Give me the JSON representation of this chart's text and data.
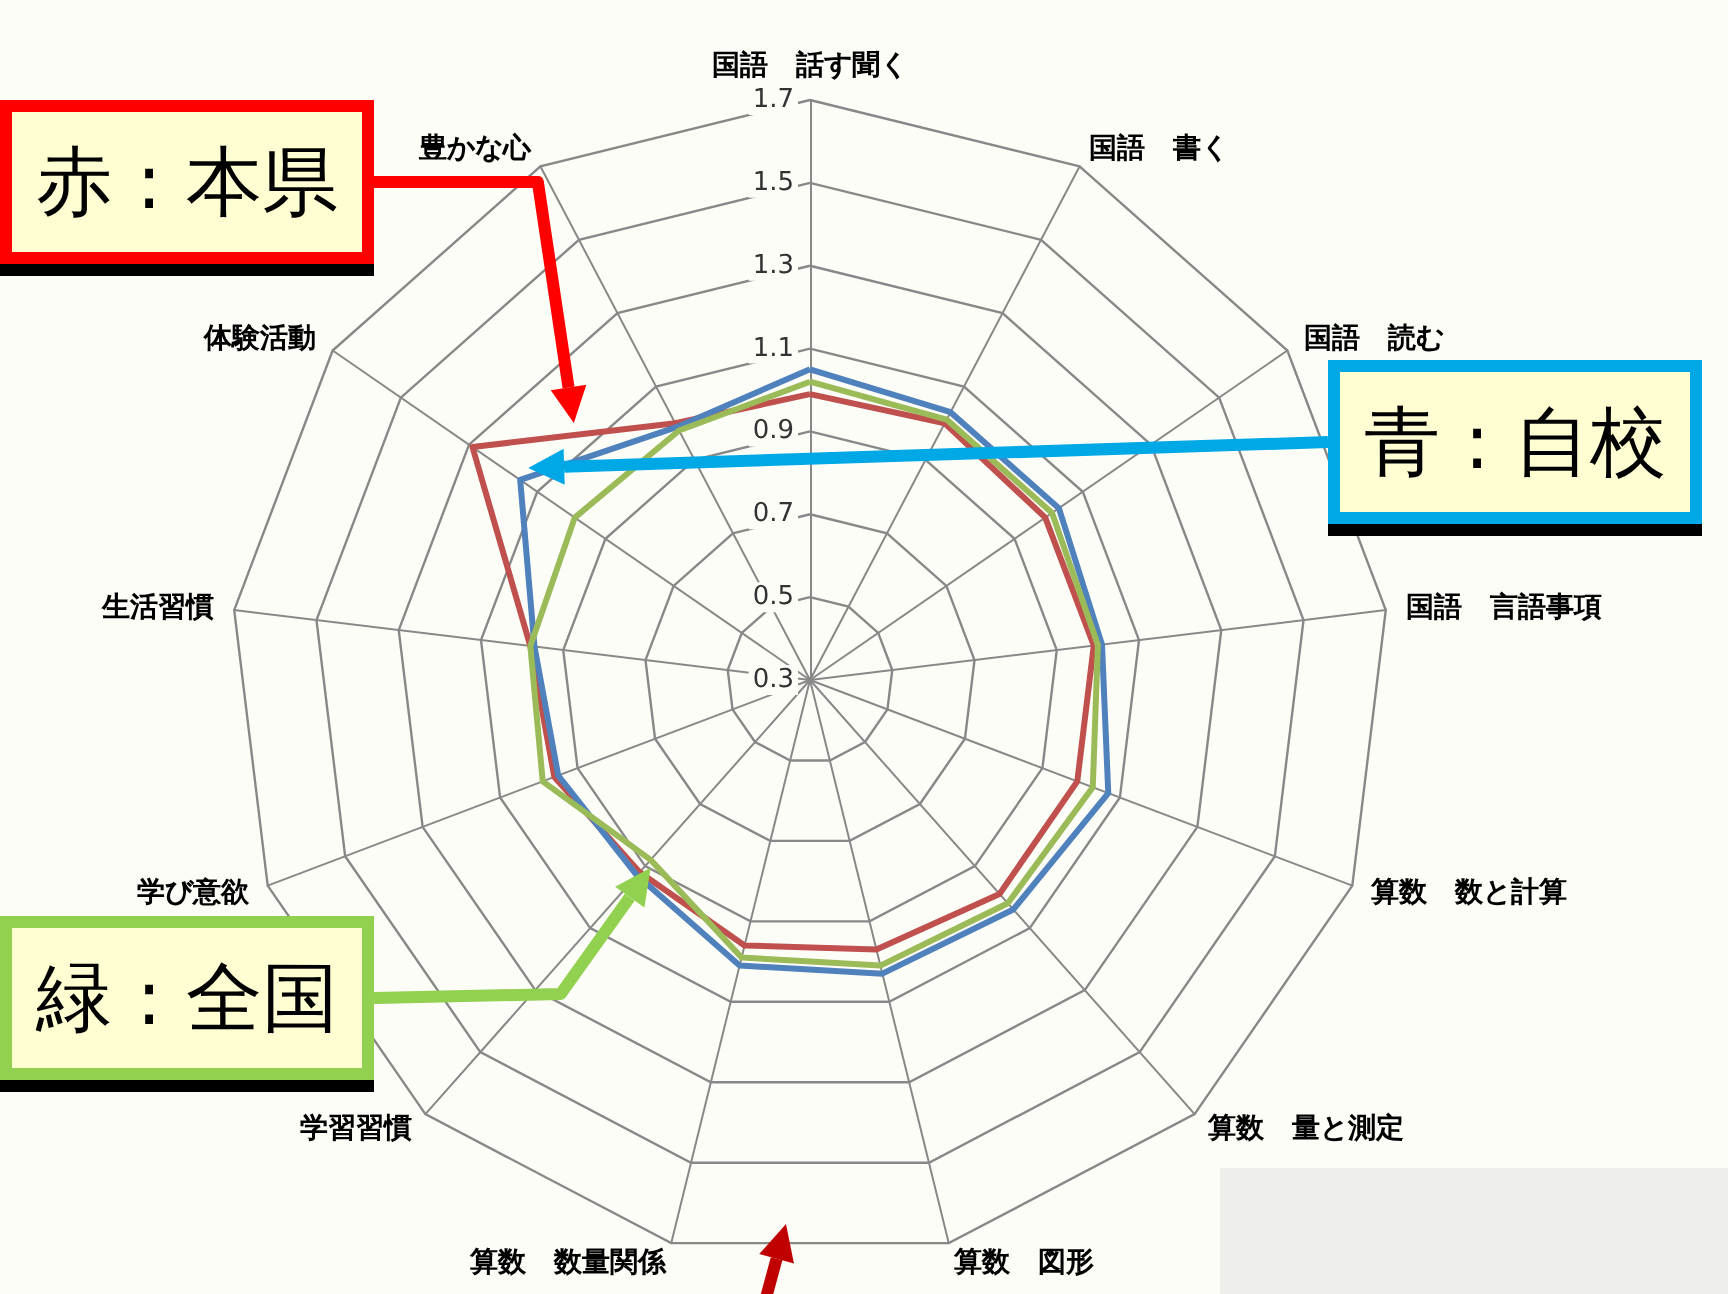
{
  "chart_data": {
    "type": "radar",
    "categories": [
      "国語　話す聞く",
      "国語　書く",
      "国語　読む",
      "国語　言語事項",
      "算数　数と計算",
      "算数　量と測定",
      "算数　図形",
      "算数　数量関係",
      "学習習慣",
      "学び意欲",
      "生活習慣",
      "体験活動",
      "豊かな心"
    ],
    "series": [
      {
        "name": "赤 : 本県",
        "color": "#c0504d",
        "values": [
          0.99,
          1.0,
          0.99,
          0.99,
          0.99,
          0.99,
          0.97,
          0.96,
          0.92,
          0.96,
          0.98,
          1.29,
          1.0
        ]
      },
      {
        "name": "青 : 自校",
        "color": "#4f81bd",
        "values": [
          1.05,
          1.03,
          1.03,
          1.01,
          1.07,
          1.04,
          1.03,
          1.01,
          0.93,
          0.95,
          0.97,
          1.15,
          0.99
        ]
      },
      {
        "name": "緑 : 全国",
        "color": "#9bbb59",
        "values": [
          1.02,
          1.01,
          1.01,
          1.0,
          1.03,
          1.02,
          1.01,
          0.99,
          0.88,
          0.99,
          0.98,
          0.99,
          0.98
        ]
      }
    ],
    "ylim": [
      0.3,
      1.7
    ],
    "yticks": [
      0.3,
      0.5,
      0.7,
      0.9,
      1.1,
      1.3,
      1.5,
      1.7
    ],
    "grid": true,
    "marker": "none"
  }
}
